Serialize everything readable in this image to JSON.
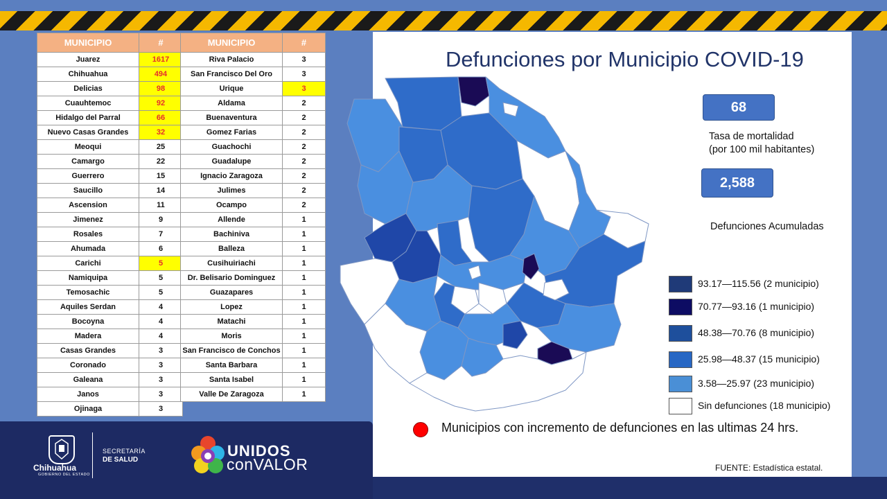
{
  "title": "Defunciones por Municipio COVID-19",
  "table_header": {
    "municipio": "MUNICIPIO",
    "count": "#"
  },
  "table_left": [
    {
      "name": "Juarez",
      "value": "1617",
      "highlight": true
    },
    {
      "name": "Chihuahua",
      "value": "494",
      "highlight": true
    },
    {
      "name": "Delicias",
      "value": "98",
      "highlight": true
    },
    {
      "name": "Cuauhtemoc",
      "value": "92",
      "highlight": true
    },
    {
      "name": "Hidalgo del Parral",
      "value": "66",
      "highlight": true
    },
    {
      "name": "Nuevo Casas Grandes",
      "value": "32",
      "highlight": true
    },
    {
      "name": "Meoqui",
      "value": "25",
      "highlight": false
    },
    {
      "name": "Camargo",
      "value": "22",
      "highlight": false
    },
    {
      "name": "Guerrero",
      "value": "15",
      "highlight": false
    },
    {
      "name": "Saucillo",
      "value": "14",
      "highlight": false
    },
    {
      "name": "Ascension",
      "value": "11",
      "highlight": false
    },
    {
      "name": "Jimenez",
      "value": "9",
      "highlight": false
    },
    {
      "name": "Rosales",
      "value": "7",
      "highlight": false
    },
    {
      "name": "Ahumada",
      "value": "6",
      "highlight": false
    },
    {
      "name": "Carichi",
      "value": "5",
      "highlight": true
    },
    {
      "name": "Namiquipa",
      "value": "5",
      "highlight": false
    },
    {
      "name": "Temosachic",
      "value": "5",
      "highlight": false
    },
    {
      "name": "Aquiles Serdan",
      "value": "4",
      "highlight": false
    },
    {
      "name": "Bocoyna",
      "value": "4",
      "highlight": false
    },
    {
      "name": "Madera",
      "value": "4",
      "highlight": false
    },
    {
      "name": "Casas Grandes",
      "value": "3",
      "highlight": false
    },
    {
      "name": "Coronado",
      "value": "3",
      "highlight": false
    },
    {
      "name": "Galeana",
      "value": "3",
      "highlight": false
    },
    {
      "name": "Janos",
      "value": "3",
      "highlight": false
    },
    {
      "name": "Ojinaga",
      "value": "3",
      "highlight": false
    }
  ],
  "table_right": [
    {
      "name": "Riva Palacio",
      "value": "3",
      "highlight": false
    },
    {
      "name": "San Francisco Del Oro",
      "value": "3",
      "highlight": false
    },
    {
      "name": "Urique",
      "value": "3",
      "highlight": true
    },
    {
      "name": "Aldama",
      "value": "2",
      "highlight": false
    },
    {
      "name": "Buenaventura",
      "value": "2",
      "highlight": false
    },
    {
      "name": "Gomez Farias",
      "value": "2",
      "highlight": false
    },
    {
      "name": "Guachochi",
      "value": "2",
      "highlight": false
    },
    {
      "name": "Guadalupe",
      "value": "2",
      "highlight": false
    },
    {
      "name": "Ignacio Zaragoza",
      "value": "2",
      "highlight": false
    },
    {
      "name": "Julimes",
      "value": "2",
      "highlight": false
    },
    {
      "name": "Ocampo",
      "value": "2",
      "highlight": false
    },
    {
      "name": "Allende",
      "value": "1",
      "highlight": false
    },
    {
      "name": "Bachiniva",
      "value": "1",
      "highlight": false
    },
    {
      "name": "Balleza",
      "value": "1",
      "highlight": false
    },
    {
      "name": "Cusihuiriachi",
      "value": "1",
      "highlight": false
    },
    {
      "name": "Dr. Belisario Dominguez",
      "value": "1",
      "highlight": false
    },
    {
      "name": "Guazapares",
      "value": "1",
      "highlight": false
    },
    {
      "name": "Lopez",
      "value": "1",
      "highlight": false
    },
    {
      "name": "Matachi",
      "value": "1",
      "highlight": false
    },
    {
      "name": "Moris",
      "value": "1",
      "highlight": false
    },
    {
      "name": "San Francisco de Conchos",
      "value": "1",
      "highlight": false
    },
    {
      "name": "Santa Barbara",
      "value": "1",
      "highlight": false
    },
    {
      "name": "Santa Isabel",
      "value": "1",
      "highlight": false
    },
    {
      "name": "Valle De Zaragoza",
      "value": "1",
      "highlight": false
    }
  ],
  "stats": {
    "rate_value": "68",
    "rate_label_1": "Tasa de mortalidad",
    "rate_label_2": "(por 100 mil habitantes)",
    "deaths_value": "2,588",
    "deaths_label": "Defunciones Acumuladas"
  },
  "legend": [
    {
      "label": "93.17—115.56 (2 municipio)",
      "color": "#1f3a78"
    },
    {
      "label": "70.77—93.16 (1 municipio)",
      "color": "#0d0c63"
    },
    {
      "label": "48.38—70.76 (8 municipio)",
      "color": "#1e4f9c"
    },
    {
      "label": "25.98—48.37 (15 municipio)",
      "color": "#2767c4"
    },
    {
      "label": "3.58—25.97 (23 municipio)",
      "color": "#4a8fd6"
    },
    {
      "label": "Sin defunciones (18 municipio)",
      "color": "#ffffff"
    }
  ],
  "map_colors": {
    "dark": "#1a0b55",
    "deep": "#1f47a8",
    "mid": "#2f6cc9",
    "light": "#4a8fe0",
    "none": "#ffffff",
    "border": "#6b84b3"
  },
  "increment_note": "Municipios con incremento de defunciones en las ultimas 24 hrs.",
  "source": "FUENTE:  Estadística estatal.",
  "logos": {
    "chihuahua": "Chihuahua",
    "chihuahua_sub": "GOBIERNO DEL ESTADO",
    "secretaria_1": "SECRETARÍA",
    "secretaria_2": "DE SALUD",
    "unidos": "UNIDOS",
    "con_valor": "conVALOR"
  }
}
